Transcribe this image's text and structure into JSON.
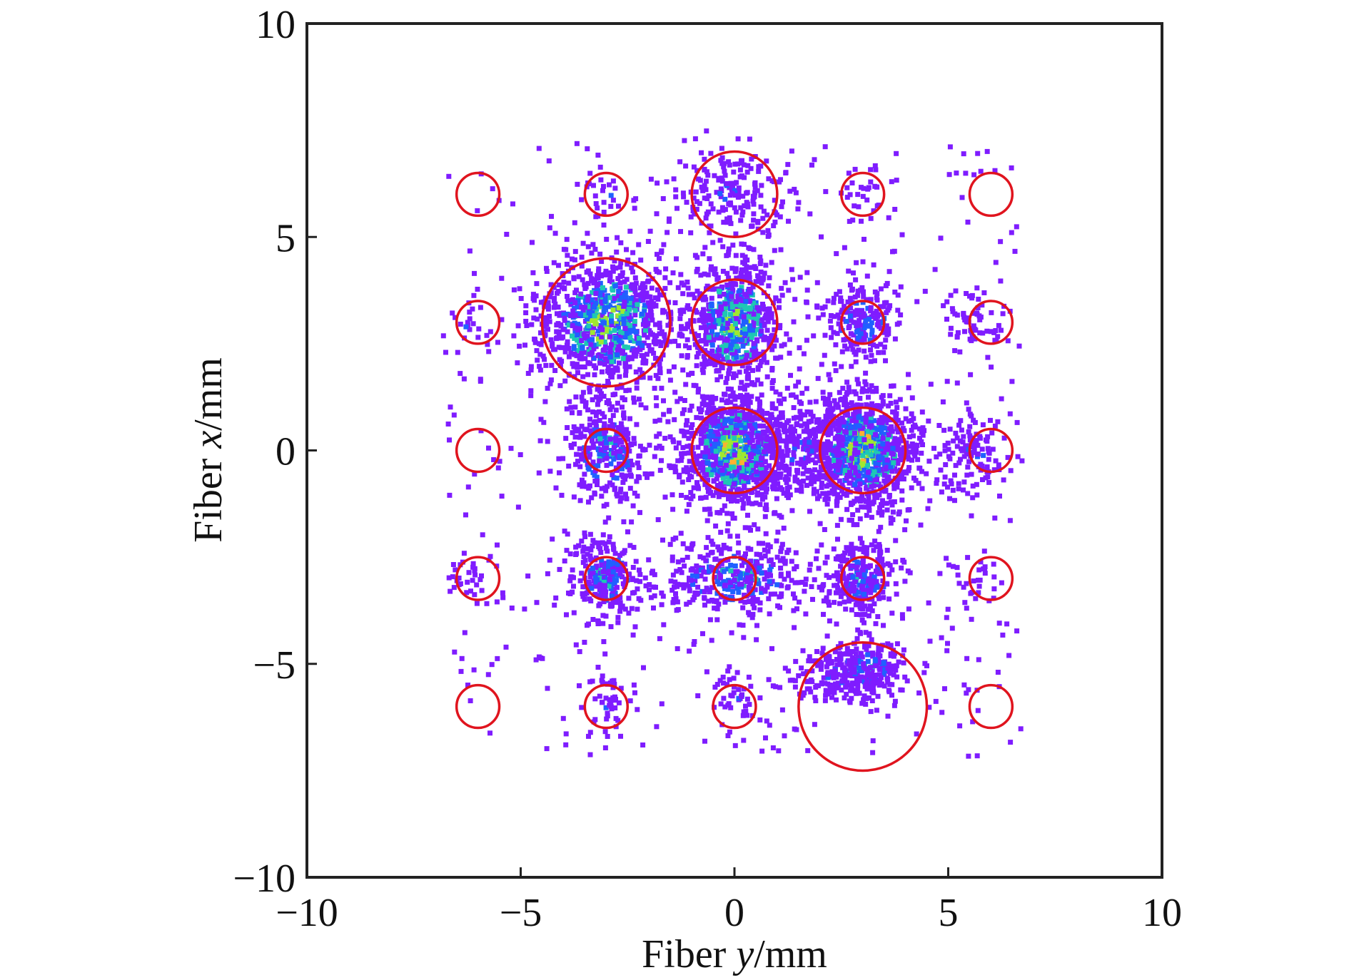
{
  "chart_data": {
    "type": "scatter",
    "title": "",
    "xlabel": {
      "prefix": "Fiber ",
      "var": "y",
      "suffix": "/mm"
    },
    "ylabel": {
      "prefix": "Fiber ",
      "var": "x",
      "suffix": "/mm"
    },
    "xlim": [
      -10,
      10
    ],
    "ylim": [
      -10,
      10
    ],
    "xticks": [
      -10,
      -5,
      0,
      5,
      10
    ],
    "yticks": [
      -10,
      -5,
      0,
      5,
      10
    ],
    "xtick_labels": [
      "−10",
      "−5",
      "0",
      "5",
      "10"
    ],
    "ytick_labels": [
      "−10",
      "−5",
      "0",
      "5",
      "10"
    ],
    "grid": false,
    "colors": {
      "circle": "#e0141e",
      "low": "#7f1cff",
      "mid": "#2060ff",
      "high": "#1ec8b4",
      "peak": "#a0e830",
      "max": "#ffb030"
    },
    "fiber_circles": [
      {
        "y": -6,
        "x": 6,
        "r": 0.5
      },
      {
        "y": -3,
        "x": 6,
        "r": 0.5
      },
      {
        "y": 0,
        "x": 6,
        "r": 1.0
      },
      {
        "y": 3,
        "x": 6,
        "r": 0.5
      },
      {
        "y": 6,
        "x": 6,
        "r": 0.5
      },
      {
        "y": -6,
        "x": 3,
        "r": 0.5
      },
      {
        "y": -3,
        "x": 3,
        "r": 1.5
      },
      {
        "y": 0,
        "x": 3,
        "r": 1.0
      },
      {
        "y": 3,
        "x": 3,
        "r": 0.5
      },
      {
        "y": 6,
        "x": 3,
        "r": 0.5
      },
      {
        "y": -6,
        "x": 0,
        "r": 0.5
      },
      {
        "y": -3,
        "x": 0,
        "r": 0.5
      },
      {
        "y": 0,
        "x": 0,
        "r": 1.0
      },
      {
        "y": 3,
        "x": 0,
        "r": 1.0
      },
      {
        "y": 6,
        "x": 0,
        "r": 0.5
      },
      {
        "y": -6,
        "x": -3,
        "r": 0.5
      },
      {
        "y": -3,
        "x": -3,
        "r": 0.5
      },
      {
        "y": 0,
        "x": -3,
        "r": 0.5
      },
      {
        "y": 3,
        "x": -3,
        "r": 0.5
      },
      {
        "y": 6,
        "x": -3,
        "r": 0.5
      },
      {
        "y": -6,
        "x": -6,
        "r": 0.5
      },
      {
        "y": -3,
        "x": -6,
        "r": 0.5
      },
      {
        "y": 0,
        "x": -6,
        "r": 0.5
      },
      {
        "y": 3,
        "x": -6,
        "r": 1.5
      },
      {
        "y": 6,
        "x": -6,
        "r": 0.5
      }
    ],
    "hit_clusters": [
      {
        "y": 0,
        "x": 6,
        "sy": 0.75,
        "sx": 0.55,
        "n": 180,
        "level": 0.35
      },
      {
        "y": -3,
        "x": 6,
        "sy": 0.3,
        "sx": 0.35,
        "n": 25,
        "level": 0.1
      },
      {
        "y": 3,
        "x": 6,
        "sy": 0.3,
        "sx": 0.35,
        "n": 25,
        "level": 0.1
      },
      {
        "y": -3,
        "x": 3,
        "sy": 0.85,
        "sx": 0.8,
        "n": 900,
        "level": 0.7
      },
      {
        "y": 0,
        "x": 3,
        "sy": 0.55,
        "sx": 0.75,
        "n": 650,
        "level": 0.75
      },
      {
        "y": 3,
        "x": 3,
        "sy": 0.45,
        "sx": 0.45,
        "n": 200,
        "level": 0.55
      },
      {
        "y": 5.6,
        "x": 3,
        "sy": 0.35,
        "sx": 0.35,
        "n": 60,
        "level": 0.2
      },
      {
        "y": -6.3,
        "x": 3,
        "sy": 0.3,
        "sx": 0.3,
        "n": 20,
        "level": 0.1
      },
      {
        "y": -3,
        "x": 0,
        "sy": 0.5,
        "sx": 0.6,
        "n": 280,
        "level": 0.55
      },
      {
        "y": 0,
        "x": 0,
        "sy": 0.65,
        "sx": 0.7,
        "n": 1000,
        "level": 0.95
      },
      {
        "y": 3,
        "x": 0,
        "sy": 0.65,
        "sx": 0.7,
        "n": 900,
        "level": 0.9
      },
      {
        "y": 1.6,
        "x": 0,
        "sy": 0.55,
        "sx": 0.6,
        "n": 200,
        "level": 0.3
      },
      {
        "y": 5.6,
        "x": 0,
        "sy": 0.4,
        "sx": 0.5,
        "n": 110,
        "level": 0.25
      },
      {
        "y": -3,
        "x": -3,
        "sy": 0.45,
        "sx": 0.45,
        "n": 260,
        "level": 0.55
      },
      {
        "y": 0,
        "x": -3,
        "sy": 0.9,
        "sx": 0.45,
        "n": 350,
        "level": 0.55
      },
      {
        "y": 3,
        "x": -3,
        "sy": 0.45,
        "sx": 0.45,
        "n": 240,
        "level": 0.55
      },
      {
        "y": 5.7,
        "x": -3,
        "sy": 0.3,
        "sx": 0.3,
        "n": 25,
        "level": 0.1
      },
      {
        "y": -6.2,
        "x": -3,
        "sy": 0.35,
        "sx": 0.35,
        "n": 25,
        "level": 0.1
      },
      {
        "y": 3,
        "x": -5.1,
        "sy": 0.55,
        "sx": 0.35,
        "n": 260,
        "level": 0.5
      },
      {
        "y": 2.3,
        "x": -5.4,
        "sy": 0.7,
        "sx": 0.3,
        "n": 100,
        "level": 0.2
      },
      {
        "y": -3,
        "x": -5.9,
        "sy": 0.35,
        "sx": 0.4,
        "n": 45,
        "level": 0.15
      },
      {
        "y": 0,
        "x": -5.9,
        "sy": 0.35,
        "sx": 0.4,
        "n": 45,
        "level": 0.15
      }
    ]
  }
}
